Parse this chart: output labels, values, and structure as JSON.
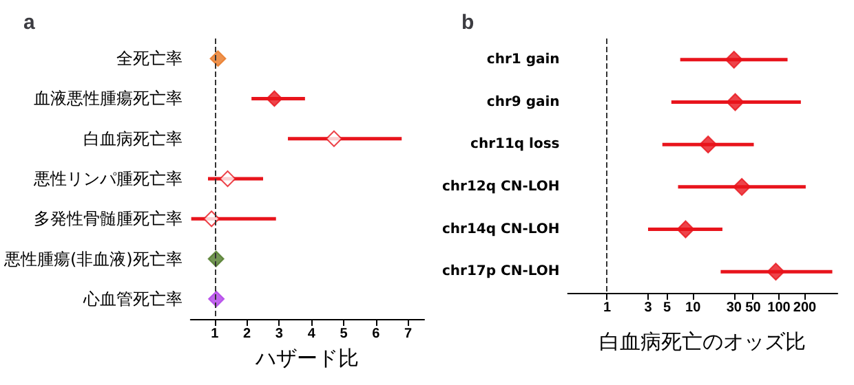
{
  "chart_data": [
    {
      "type": "scatter",
      "title": "a",
      "xlabel": "ハザード比",
      "categories": [
        "全死亡率",
        "血液悪性腫瘍死亡率",
        "白血病死亡率",
        "悪性リンパ腫死亡率",
        "多発性骨髄腫死亡率",
        "悪性腫瘍(非血液)死亡率",
        "心血管死亡率"
      ],
      "series": [
        {
          "color": "#e8141c",
          "colors": [
            "#e87722",
            "#e8141c",
            "#ffffff",
            "#ffffff",
            "#ffffff",
            "#4f7a28",
            "#b03ee8"
          ],
          "values": [
            1.1,
            2.85,
            4.7,
            1.4,
            0.9,
            1.04,
            1.05
          ],
          "errors": [
            null,
            [
              2.14,
              3.8
            ],
            [
              3.27,
              6.8
            ],
            [
              0.79,
              2.5
            ],
            [
              0.27,
              2.9
            ],
            null,
            null
          ]
        }
      ],
      "orientation": "horizontal",
      "xlim": [
        0.25,
        7.5
      ],
      "xticks": [
        1,
        2,
        3,
        4,
        5,
        6,
        7
      ],
      "marker": "diamond",
      "grid": false,
      "ref_lines": [
        {
          "axis": "x",
          "value": 1,
          "color": "#333333",
          "line_style": "dashed"
        }
      ]
    },
    {
      "type": "scatter",
      "title": "b",
      "xlabel": "白血病死亡のオッズ比",
      "categories": [
        "chr1 gain",
        "chr9 gain",
        "chr11q loss",
        "chr12q CN-LOH",
        "chr14q CN-LOH",
        "chr17p CN-LOH"
      ],
      "series": [
        {
          "color": "#e8141c",
          "values": [
            30,
            31,
            15,
            37,
            8.2,
            92
          ],
          "errors": [
            [
              7.1,
              126
            ],
            [
              5.6,
              180
            ],
            [
              4.4,
              51
            ],
            [
              6.7,
              205
            ],
            [
              3.0,
              22
            ],
            [
              21,
              418
            ]
          ]
        }
      ],
      "orientation": "horizontal",
      "xlim": [
        0.35,
        480
      ],
      "xticks": [
        1,
        3,
        5,
        10,
        30,
        50,
        100,
        200
      ],
      "log": "x",
      "marker": "diamond",
      "grid": false,
      "ref_lines": [
        {
          "axis": "x",
          "value": 1,
          "color": "#333333",
          "line_style": "dashed"
        }
      ]
    }
  ]
}
